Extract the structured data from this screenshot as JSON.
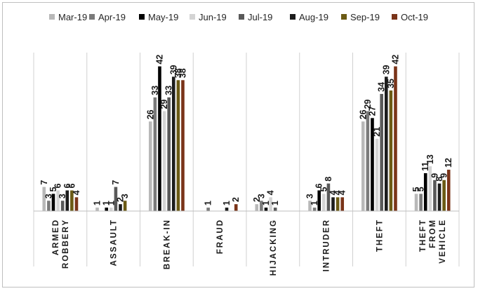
{
  "chart_data": {
    "type": "bar",
    "categories": [
      [
        "ARMED",
        "ROBBERY"
      ],
      [
        "ASSAULT"
      ],
      [
        "BREAK-IN"
      ],
      [
        "FRAUD"
      ],
      [
        "HIJACKING"
      ],
      [
        "INTRUDER"
      ],
      [
        "THEFT"
      ],
      [
        "THEFT",
        "FROM",
        "VEHICLE"
      ]
    ],
    "series": [
      {
        "name": "Mar-19",
        "color": "#b8b8b8",
        "values": [
          7,
          1,
          26,
          null,
          2,
          3,
          26,
          5
        ]
      },
      {
        "name": "Apr-19",
        "color": "#7a7a7a",
        "values": [
          3,
          null,
          33,
          1,
          3,
          1,
          29,
          5
        ]
      },
      {
        "name": "May-19",
        "color": "#000000",
        "values": [
          5,
          1,
          42,
          null,
          1,
          6,
          27,
          11
        ]
      },
      {
        "name": "Jun-19",
        "color": "#d4d4d4",
        "values": [
          6,
          1,
          29,
          null,
          4,
          5,
          21,
          13
        ]
      },
      {
        "name": "Jul-19",
        "color": "#595959",
        "values": [
          3,
          7,
          33,
          null,
          1,
          8,
          34,
          9
        ]
      },
      {
        "name": "Aug-19",
        "color": "#1c1c1c",
        "values": [
          6,
          2,
          39,
          1,
          null,
          4,
          39,
          8
        ]
      },
      {
        "name": "Sep-19",
        "color": "#6b5a14",
        "values": [
          6,
          3,
          38,
          null,
          null,
          4,
          35,
          9
        ]
      },
      {
        "name": "Oct-19",
        "color": "#7a3419",
        "values": [
          4,
          null,
          38,
          2,
          null,
          4,
          42,
          12
        ]
      }
    ],
    "ylim": [
      0,
      46
    ],
    "grid": false,
    "legend": "top",
    "data_labels": true
  }
}
